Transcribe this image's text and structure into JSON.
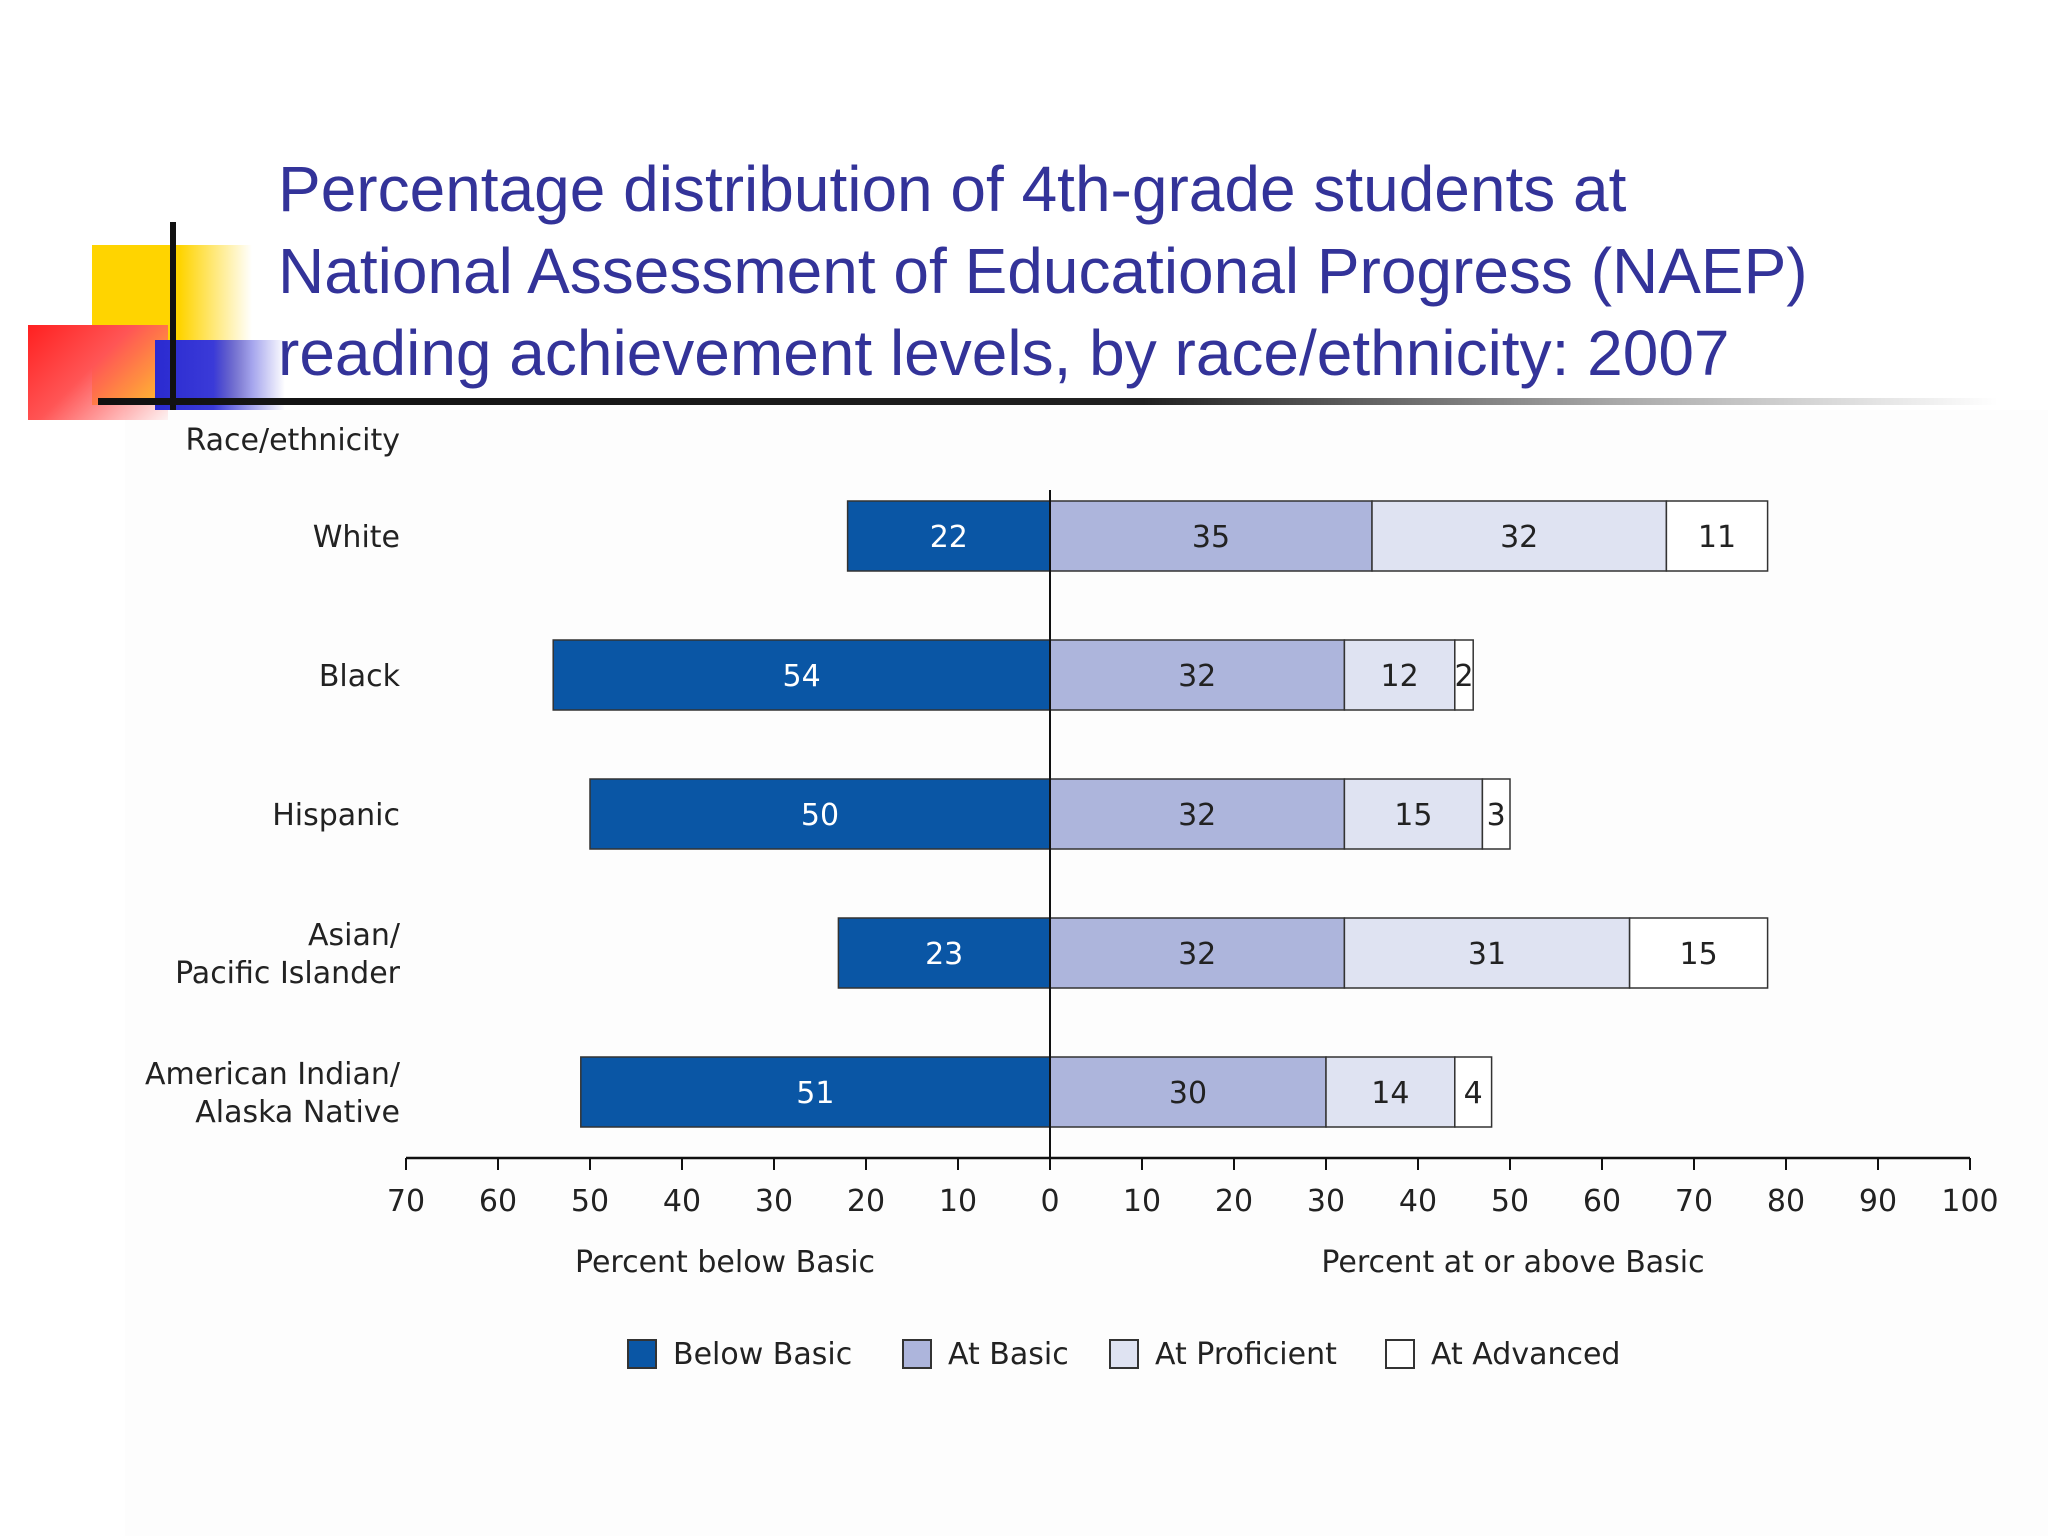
{
  "title_lines": [
    "Percentage distribution of 4th-grade students at",
    "National Assessment of Educational Progress (NAEP)",
    "reading achievement levels, by race/ethnicity: 2007"
  ],
  "colors": {
    "title": "#333399",
    "below_basic": "#0a56a5",
    "at_basic": "#adb5dc",
    "at_proficient": "#dfe3f2",
    "at_advanced": "#ffffff"
  },
  "chart_data": {
    "type": "bar",
    "orientation": "horizontal-diverging",
    "stacked": true,
    "y_axis_title": "Race/ethnicity",
    "categories": [
      [
        "White"
      ],
      [
        "Black"
      ],
      [
        "Hispanic"
      ],
      [
        "Asian/",
        "Pacific Islander"
      ],
      [
        "American Indian/",
        "Alaska Native"
      ]
    ],
    "series": [
      {
        "name": "Below Basic",
        "direction": "left",
        "color": "#0a56a5",
        "values": [
          22,
          54,
          50,
          23,
          51
        ]
      },
      {
        "name": "At Basic",
        "direction": "right",
        "color": "#adb5dc",
        "values": [
          35,
          32,
          32,
          32,
          30
        ]
      },
      {
        "name": "At Proficient",
        "direction": "right",
        "color": "#dfe3f2",
        "values": [
          32,
          12,
          15,
          31,
          14
        ]
      },
      {
        "name": "At Advanced",
        "direction": "right",
        "color": "#ffffff",
        "values": [
          11,
          2,
          3,
          15,
          4
        ]
      }
    ],
    "x_ticks": [
      "70",
      "60",
      "50",
      "40",
      "30",
      "20",
      "10",
      "0",
      "10",
      "20",
      "30",
      "40",
      "50",
      "60",
      "70",
      "80",
      "90",
      "100"
    ],
    "xlim": [
      -70,
      100
    ],
    "xlabel_left": "Percent below Basic",
    "xlabel_right": "Percent at or above Basic",
    "legend": [
      "Below Basic",
      "At Basic",
      "At Proficient",
      "At Advanced"
    ],
    "legend_position": "bottom",
    "grid": false
  }
}
